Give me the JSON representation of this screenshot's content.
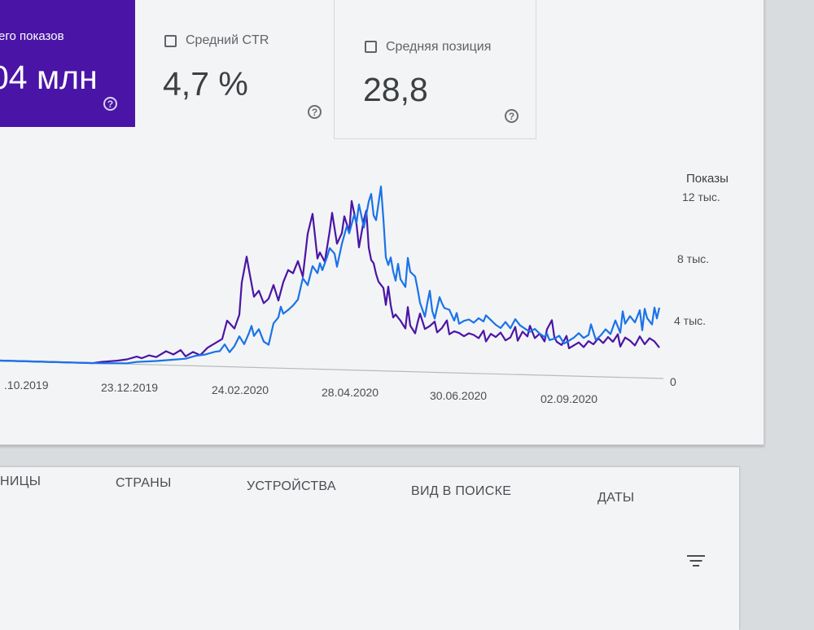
{
  "metrics": {
    "impressions": {
      "label": "его показов",
      "value": "04 млн",
      "help": "?"
    },
    "ctr": {
      "label": "Средний CTR",
      "value": "4,7 %",
      "help": "?"
    },
    "position": {
      "label": "Средняя позиция",
      "value": "28,8",
      "help": "?"
    }
  },
  "colors": {
    "impressions": "#4a15a6",
    "clicks": "#1a73e8"
  },
  "chart_data": {
    "type": "line",
    "ylabel": "Показы",
    "ylim": [
      0,
      12000
    ],
    "yticks": [
      "12 тыс.",
      "8 тыс.",
      "4 тыс.",
      "0"
    ],
    "xticks": [
      ".10.2019",
      "23.12.2019",
      "24.02.2020",
      "28.04.2020",
      "30.06.2020",
      "02.09.2020"
    ],
    "series": [
      {
        "color": "#4a15a6",
        "points": [
          [
            0,
            0
          ],
          [
            28,
            0
          ],
          [
            56,
            0
          ],
          [
            76,
            0
          ],
          [
            84,
            100
          ],
          [
            96,
            200
          ],
          [
            104,
            300
          ],
          [
            112,
            500
          ],
          [
            116,
            400
          ],
          [
            122,
            600
          ],
          [
            128,
            500
          ],
          [
            136,
            900
          ],
          [
            142,
            700
          ],
          [
            148,
            1000
          ],
          [
            152,
            600
          ],
          [
            158,
            900
          ],
          [
            164,
            700
          ],
          [
            170,
            1200
          ],
          [
            176,
            1500
          ],
          [
            182,
            1800
          ],
          [
            186,
            3000
          ],
          [
            192,
            2500
          ],
          [
            196,
            3400
          ],
          [
            198,
            5500
          ],
          [
            202,
            7200
          ],
          [
            204,
            6300
          ],
          [
            208,
            4600
          ],
          [
            212,
            5000
          ],
          [
            216,
            4200
          ],
          [
            220,
            4500
          ],
          [
            224,
            5400
          ],
          [
            228,
            4400
          ],
          [
            232,
            5600
          ],
          [
            236,
            6400
          ],
          [
            240,
            6200
          ],
          [
            244,
            7000
          ],
          [
            248,
            6000
          ],
          [
            252,
            8800
          ],
          [
            256,
            10100
          ],
          [
            260,
            7200
          ],
          [
            262,
            7600
          ],
          [
            266,
            7000
          ],
          [
            270,
            9000
          ],
          [
            272,
            10200
          ],
          [
            276,
            8200
          ],
          [
            280,
            8900
          ],
          [
            282,
            10000
          ],
          [
            286,
            9000
          ],
          [
            288,
            11000
          ],
          [
            292,
            9500
          ],
          [
            294,
            8000
          ],
          [
            298,
            9800
          ],
          [
            300,
            10400
          ],
          [
            302,
            8000
          ],
          [
            304,
            7200
          ],
          [
            306,
            7000
          ],
          [
            308,
            6300
          ],
          [
            310,
            5800
          ],
          [
            314,
            5400
          ],
          [
            316,
            4300
          ],
          [
            318,
            5500
          ],
          [
            320,
            4300
          ],
          [
            322,
            3500
          ],
          [
            324,
            3700
          ],
          [
            328,
            3300
          ],
          [
            332,
            2800
          ],
          [
            334,
            4200
          ],
          [
            336,
            3000
          ],
          [
            340,
            2500
          ],
          [
            342,
            3200
          ],
          [
            344,
            3800
          ],
          [
            348,
            2800
          ],
          [
            352,
            3000
          ],
          [
            356,
            3300
          ],
          [
            358,
            2600
          ],
          [
            362,
            2900
          ],
          [
            366,
            3400
          ],
          [
            368,
            2500
          ],
          [
            372,
            2700
          ],
          [
            376,
            2600
          ],
          [
            380,
            2400
          ],
          [
            384,
            2600
          ],
          [
            388,
            2500
          ],
          [
            392,
            2300
          ],
          [
            396,
            2800
          ],
          [
            398,
            2100
          ],
          [
            402,
            2600
          ],
          [
            406,
            2400
          ],
          [
            410,
            2700
          ],
          [
            414,
            2200
          ],
          [
            418,
            2400
          ],
          [
            422,
            3100
          ],
          [
            424,
            2200
          ],
          [
            428,
            2800
          ],
          [
            432,
            2500
          ],
          [
            434,
            3200
          ],
          [
            438,
            2400
          ],
          [
            442,
            2700
          ],
          [
            446,
            2200
          ],
          [
            448,
            3000
          ],
          [
            452,
            3600
          ],
          [
            454,
            2500
          ],
          [
            456,
            2200
          ],
          [
            460,
            2000
          ],
          [
            464,
            2600
          ],
          [
            466,
            1800
          ],
          [
            470,
            2000
          ],
          [
            474,
            2200
          ],
          [
            478,
            1900
          ],
          [
            482,
            2300
          ],
          [
            486,
            2100
          ],
          [
            490,
            2500
          ],
          [
            494,
            2200
          ],
          [
            498,
            2600
          ],
          [
            502,
            2300
          ],
          [
            506,
            2800
          ],
          [
            508,
            2000
          ],
          [
            512,
            2600
          ],
          [
            516,
            2400
          ],
          [
            520,
            2100
          ],
          [
            524,
            2700
          ],
          [
            528,
            2200
          ],
          [
            532,
            2600
          ],
          [
            536,
            2400
          ],
          [
            540,
            2000
          ]
        ]
      },
      {
        "color": "#1a73e8",
        "points": [
          [
            0,
            0
          ],
          [
            40,
            0
          ],
          [
            80,
            0
          ],
          [
            104,
            50
          ],
          [
            112,
            150
          ],
          [
            128,
            250
          ],
          [
            140,
            350
          ],
          [
            152,
            450
          ],
          [
            160,
            650
          ],
          [
            168,
            750
          ],
          [
            176,
            950
          ],
          [
            180,
            1000
          ],
          [
            184,
            1450
          ],
          [
            188,
            950
          ],
          [
            192,
            1350
          ],
          [
            196,
            2000
          ],
          [
            200,
            1500
          ],
          [
            204,
            2250
          ],
          [
            206,
            2700
          ],
          [
            208,
            2050
          ],
          [
            212,
            2500
          ],
          [
            216,
            1700
          ],
          [
            220,
            1500
          ],
          [
            224,
            2900
          ],
          [
            228,
            3300
          ],
          [
            230,
            4000
          ],
          [
            232,
            3550
          ],
          [
            236,
            3800
          ],
          [
            240,
            4100
          ],
          [
            244,
            4500
          ],
          [
            248,
            5900
          ],
          [
            252,
            5450
          ],
          [
            256,
            6700
          ],
          [
            260,
            6250
          ],
          [
            262,
            6900
          ],
          [
            264,
            6450
          ],
          [
            268,
            7350
          ],
          [
            270,
            7900
          ],
          [
            274,
            7550
          ],
          [
            276,
            6700
          ],
          [
            280,
            8200
          ],
          [
            284,
            9350
          ],
          [
            286,
            8900
          ],
          [
            290,
            10100
          ],
          [
            292,
            9600
          ],
          [
            294,
            10800
          ],
          [
            298,
            9300
          ],
          [
            302,
            11000
          ],
          [
            304,
            11500
          ],
          [
            306,
            10100
          ],
          [
            308,
            9800
          ],
          [
            312,
            12000
          ],
          [
            314,
            9900
          ],
          [
            316,
            7400
          ],
          [
            318,
            6900
          ],
          [
            320,
            7400
          ],
          [
            322,
            6500
          ],
          [
            324,
            5900
          ],
          [
            326,
            7000
          ],
          [
            328,
            6000
          ],
          [
            332,
            5500
          ],
          [
            334,
            7400
          ],
          [
            336,
            6500
          ],
          [
            340,
            6200
          ],
          [
            342,
            5400
          ],
          [
            344,
            4500
          ],
          [
            348,
            3600
          ],
          [
            350,
            4500
          ],
          [
            352,
            5300
          ],
          [
            354,
            4000
          ],
          [
            356,
            3500
          ],
          [
            360,
            4900
          ],
          [
            362,
            4500
          ],
          [
            364,
            4200
          ],
          [
            368,
            4100
          ],
          [
            372,
            3400
          ],
          [
            374,
            3900
          ],
          [
            376,
            3200
          ],
          [
            380,
            3400
          ],
          [
            384,
            3500
          ],
          [
            388,
            3300
          ],
          [
            392,
            3600
          ],
          [
            396,
            3400
          ],
          [
            398,
            3800
          ],
          [
            402,
            3500
          ],
          [
            406,
            3200
          ],
          [
            410,
            3000
          ],
          [
            414,
            3400
          ],
          [
            418,
            3000
          ],
          [
            422,
            3600
          ],
          [
            426,
            3200
          ],
          [
            430,
            3000
          ],
          [
            434,
            2800
          ],
          [
            438,
            3000
          ],
          [
            442,
            2700
          ],
          [
            446,
            2500
          ],
          [
            448,
            2700
          ],
          [
            450,
            2300
          ],
          [
            454,
            2400
          ],
          [
            458,
            2600
          ],
          [
            462,
            2100
          ],
          [
            466,
            2300
          ],
          [
            470,
            2500
          ],
          [
            474,
            2800
          ],
          [
            478,
            2500
          ],
          [
            482,
            2700
          ],
          [
            484,
            3400
          ],
          [
            488,
            2400
          ],
          [
            492,
            2700
          ],
          [
            496,
            3100
          ],
          [
            500,
            2800
          ],
          [
            504,
            3700
          ],
          [
            508,
            2900
          ],
          [
            510,
            4300
          ],
          [
            512,
            3500
          ],
          [
            516,
            4000
          ],
          [
            520,
            3600
          ],
          [
            524,
            4400
          ],
          [
            526,
            3100
          ],
          [
            528,
            4500
          ],
          [
            530,
            3900
          ],
          [
            534,
            3500
          ],
          [
            536,
            4600
          ],
          [
            538,
            3900
          ],
          [
            540,
            4600
          ]
        ]
      }
    ]
  },
  "tabs": [
    "НИЦЫ",
    "СТРАНЫ",
    "УСТРОЙСТВА",
    "ВИД В ПОИСКЕ",
    "ДАТЫ"
  ],
  "icons": {
    "help": "help-circle-icon",
    "filter": "filter-icon",
    "checkbox": "checkbox-icon"
  }
}
